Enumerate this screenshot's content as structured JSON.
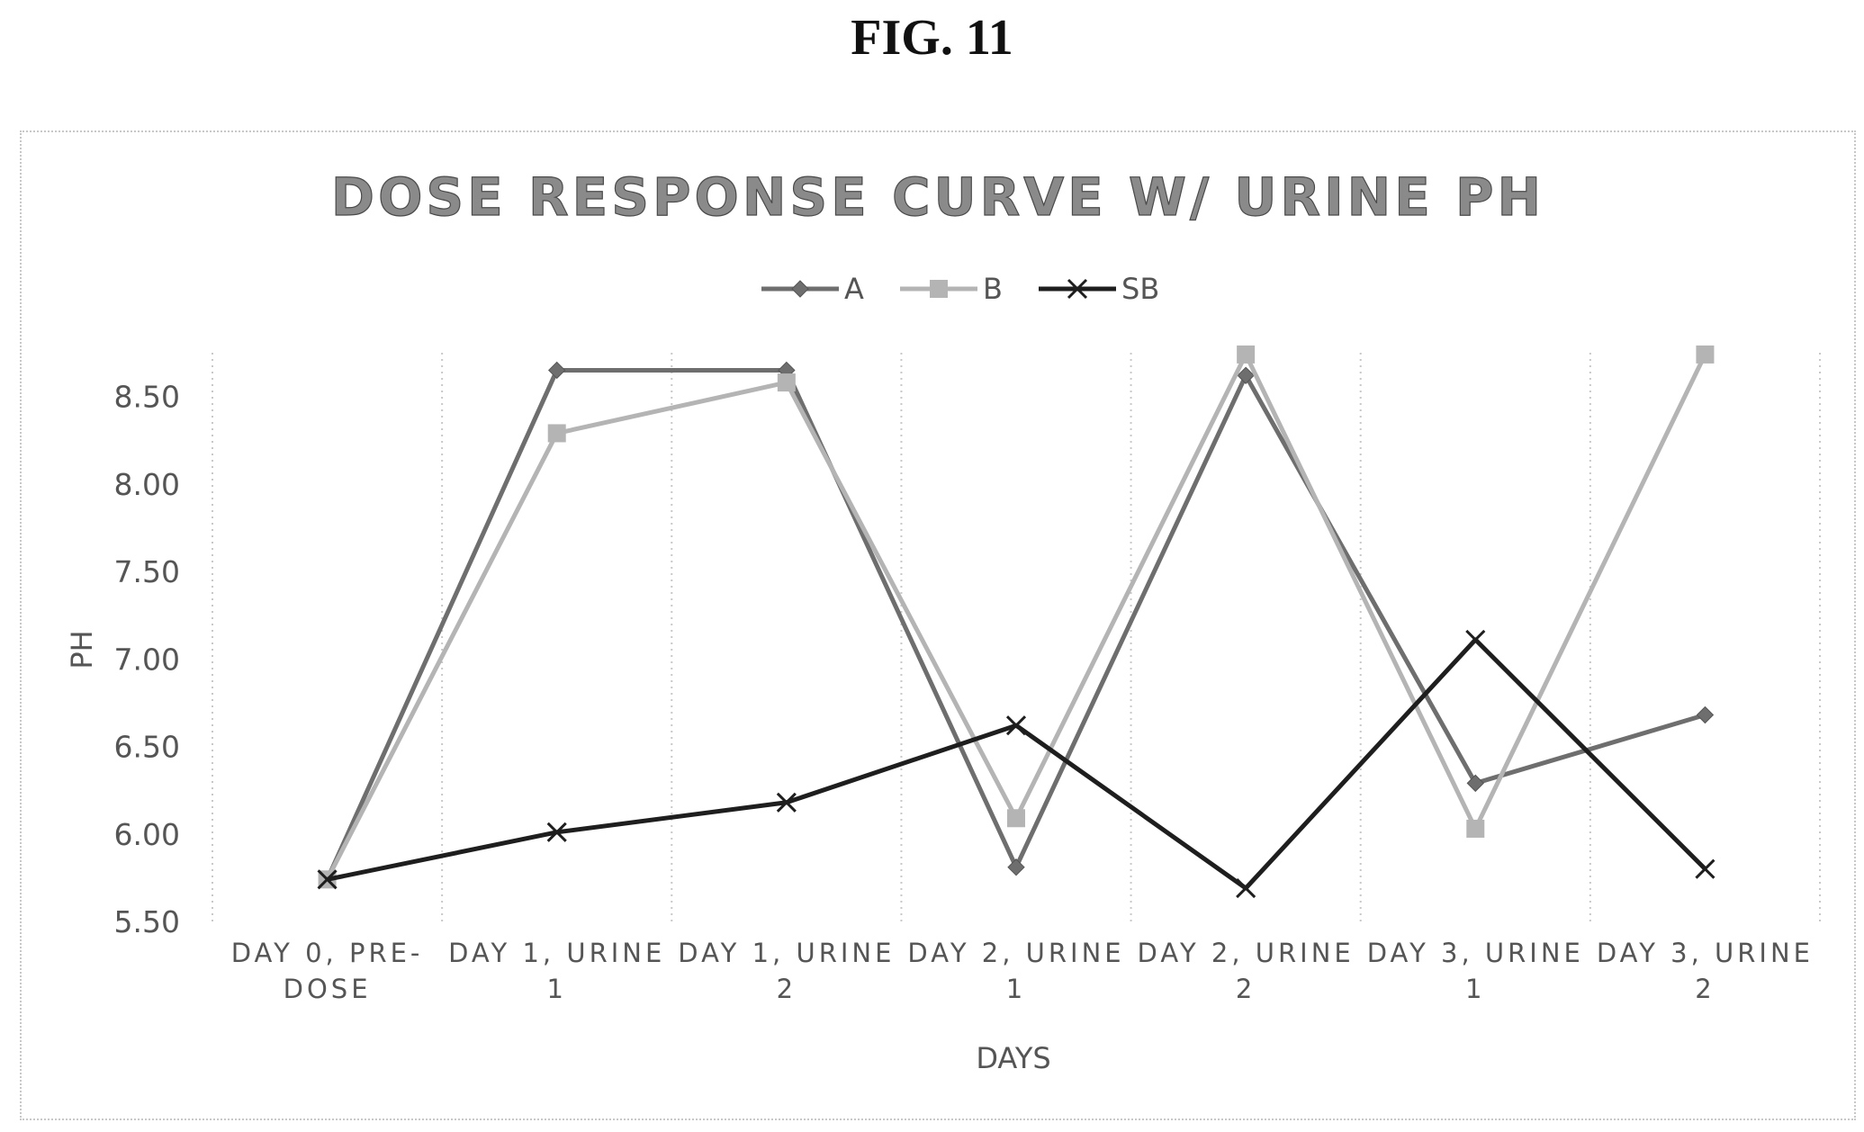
{
  "figure_label": "FIG. 11",
  "chart_data": {
    "type": "line",
    "title": "DOSE RESPONSE CURVE W/ URINE PH",
    "xlabel": "DAYS",
    "ylabel": "PH",
    "ylim": [
      5.5,
      8.75
    ],
    "yticks": [
      "5.50",
      "6.00",
      "6.50",
      "7.00",
      "7.50",
      "8.00",
      "8.50"
    ],
    "categories": [
      [
        "DAY 0, PRE-",
        "DOSE"
      ],
      [
        "DAY 1, URINE",
        "1"
      ],
      [
        "DAY 1, URINE",
        "2"
      ],
      [
        "DAY 2, URINE",
        "1"
      ],
      [
        "DAY 2, URINE",
        "2"
      ],
      [
        "DAY 3, URINE",
        "1"
      ],
      [
        "DAY 3, URINE",
        "2"
      ]
    ],
    "grid": "vertical dotted",
    "legend": "top",
    "series": [
      {
        "name": "A",
        "marker": "diamond",
        "color": "#6e6e6e",
        "values": [
          5.74,
          8.65,
          8.65,
          5.81,
          8.62,
          6.29,
          6.68
        ]
      },
      {
        "name": "B",
        "marker": "square",
        "color": "#b4b4b4",
        "values": [
          5.74,
          8.29,
          8.58,
          6.09,
          8.74,
          6.03,
          8.74
        ]
      },
      {
        "name": "SB",
        "marker": "x",
        "color": "#1e1e1e",
        "values": [
          5.74,
          6.01,
          6.18,
          6.62,
          5.69,
          7.11,
          5.8
        ]
      }
    ]
  }
}
